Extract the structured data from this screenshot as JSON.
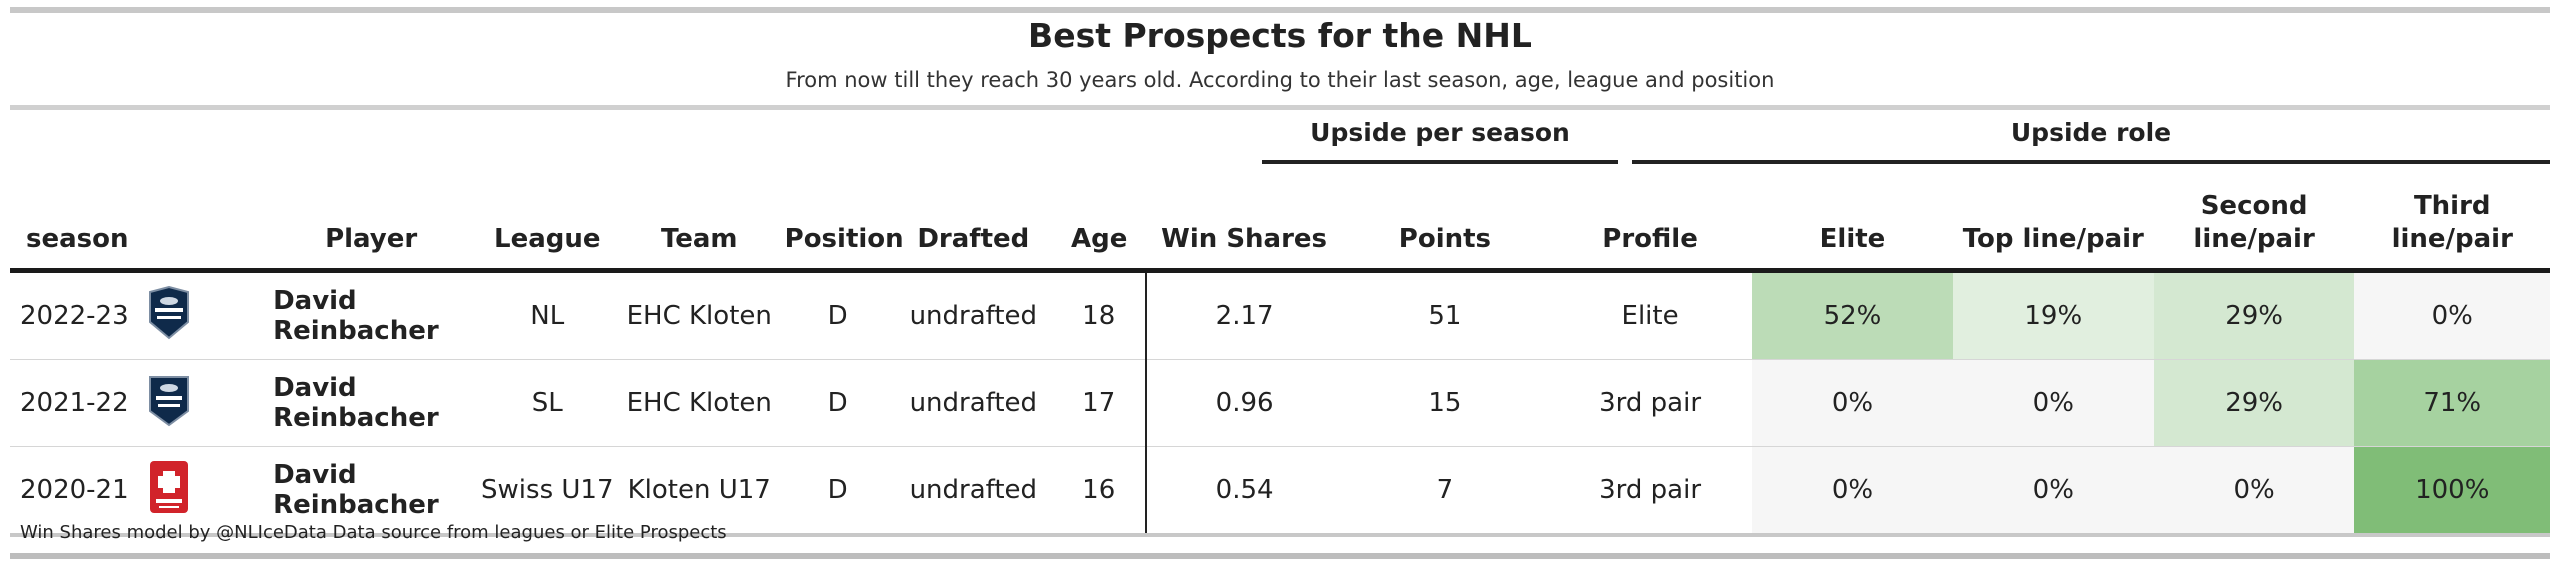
{
  "header": {
    "title": "Best Prospects for the NHL",
    "subtitle": "From now till they reach 30 years old. According to their last season, age, league and position"
  },
  "spanners": {
    "upside_per_season": "Upside per season",
    "upside_role": "Upside role"
  },
  "columns": {
    "season": "season",
    "player": "Player",
    "league": "League",
    "team": "Team",
    "position": "Position",
    "drafted": "Drafted",
    "age": "Age",
    "win_shares": "Win Shares",
    "points": "Points",
    "profile": "Profile",
    "elite": "Elite",
    "top_line": "Top line/pair",
    "second_line": "Second line/pair",
    "third_line": "Third line/pair"
  },
  "rows": [
    {
      "season": "2022-23",
      "logo_icon": "national-league-logo-icon",
      "player": "David Reinbacher",
      "league": "NL",
      "team": "EHC Kloten",
      "position": "D",
      "drafted": "undrafted",
      "age": "18",
      "win_shares": "2.17",
      "points": "51",
      "profile": "Elite",
      "elite": "52%",
      "top_line": "19%",
      "second_line": "29%",
      "third_line": "0%",
      "colors": {
        "elite": "#bcdcb7",
        "top_line": "#e1efdf",
        "second_line": "#d4e8d1",
        "third_line": "#f6f6f6"
      }
    },
    {
      "season": "2021-22",
      "logo_icon": "swiss-league-logo-icon",
      "player": "David Reinbacher",
      "league": "SL",
      "team": "EHC Kloten",
      "position": "D",
      "drafted": "undrafted",
      "age": "17",
      "win_shares": "0.96",
      "points": "15",
      "profile": "3rd pair",
      "elite": "0%",
      "top_line": "0%",
      "second_line": "29%",
      "third_line": "71%",
      "colors": {
        "elite": "#f6f6f6",
        "top_line": "#f6f6f6",
        "second_line": "#d4e8d1",
        "third_line": "#a6d2a0"
      }
    },
    {
      "season": "2020-21",
      "logo_icon": "swiss-ice-hockey-logo-icon",
      "player": "David Reinbacher",
      "league": "Swiss U17",
      "team": "Kloten U17",
      "position": "D",
      "drafted": "undrafted",
      "age": "16",
      "win_shares": "0.54",
      "points": "7",
      "profile": "3rd pair",
      "elite": "0%",
      "top_line": "0%",
      "second_line": "0%",
      "third_line": "100%",
      "colors": {
        "elite": "#f6f6f6",
        "top_line": "#f6f6f6",
        "second_line": "#f6f6f6",
        "third_line": "#80bd77"
      }
    }
  ],
  "footer": "Win Shares model by @NLIceData Data source from leagues or Elite Prospects"
}
